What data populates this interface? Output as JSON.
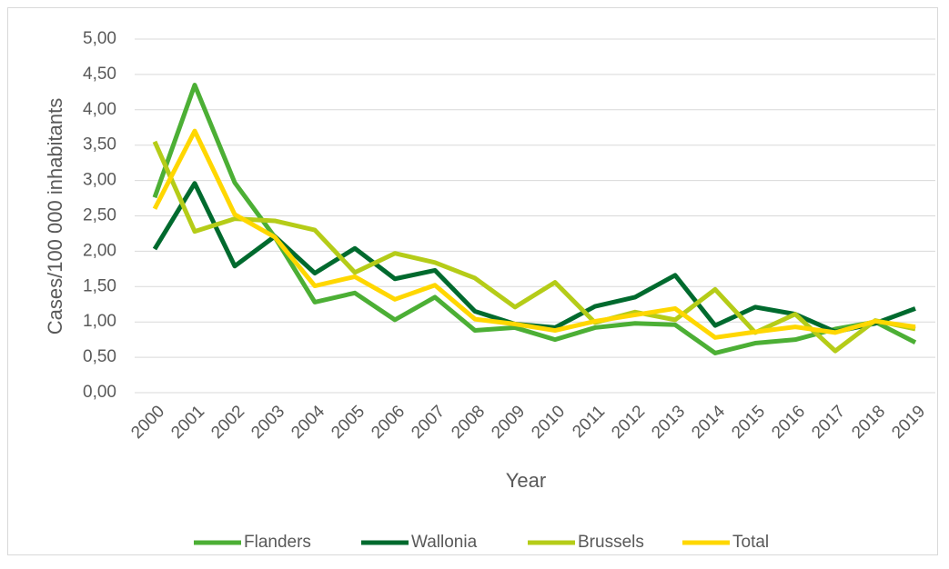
{
  "chart_data": {
    "type": "line",
    "y_label": "Cases/100 000 inhabitants",
    "x_label": "Year",
    "categories": [
      "2000",
      "2001",
      "2002",
      "2003",
      "2004",
      "2005",
      "2006",
      "2007",
      "2008",
      "2009",
      "2010",
      "2011",
      "2012",
      "2013",
      "2014",
      "2015",
      "2016",
      "2017",
      "2018",
      "2019"
    ],
    "series": [
      {
        "name": "Flanders",
        "color": "#4caf35",
        "values": [
          2.76,
          4.35,
          2.97,
          2.2,
          1.28,
          1.41,
          1.03,
          1.35,
          0.88,
          0.92,
          0.75,
          0.92,
          0.98,
          0.96,
          0.56,
          0.7,
          0.75,
          0.9,
          1.0,
          0.71
        ]
      },
      {
        "name": "Wallonia",
        "color": "#006a2e",
        "values": [
          2.03,
          2.96,
          1.79,
          2.21,
          1.69,
          2.04,
          1.61,
          1.73,
          1.15,
          0.97,
          0.92,
          1.22,
          1.35,
          1.66,
          0.95,
          1.21,
          1.11,
          0.86,
          0.98,
          1.19
        ]
      },
      {
        "name": "Brussels",
        "color": "#b5cc18",
        "values": [
          3.55,
          2.28,
          2.46,
          2.43,
          2.3,
          1.7,
          1.97,
          1.84,
          1.62,
          1.21,
          1.56,
          0.99,
          1.14,
          1.03,
          1.46,
          0.85,
          1.11,
          0.59,
          1.02,
          0.9
        ]
      },
      {
        "name": "Total",
        "color": "#ffd700",
        "values": [
          2.6,
          3.7,
          2.52,
          2.2,
          1.51,
          1.64,
          1.32,
          1.52,
          1.04,
          0.97,
          0.88,
          1.01,
          1.1,
          1.19,
          0.78,
          0.86,
          0.93,
          0.85,
          1.01,
          0.93
        ]
      }
    ],
    "ylim": [
      0,
      5
    ],
    "yticks": [
      {
        "value": 0,
        "label": "0,00"
      },
      {
        "value": 0.5,
        "label": "0,50"
      },
      {
        "value": 1,
        "label": "1,00"
      },
      {
        "value": 1.5,
        "label": "1,50"
      },
      {
        "value": 2,
        "label": "2,00"
      },
      {
        "value": 2.5,
        "label": "2,50"
      },
      {
        "value": 3,
        "label": "3,00"
      },
      {
        "value": 3.5,
        "label": "3,50"
      },
      {
        "value": 4,
        "label": "4,00"
      },
      {
        "value": 4.5,
        "label": "4,50"
      },
      {
        "value": 5,
        "label": "5,00"
      }
    ],
    "grid": true,
    "legend": "bottom"
  }
}
